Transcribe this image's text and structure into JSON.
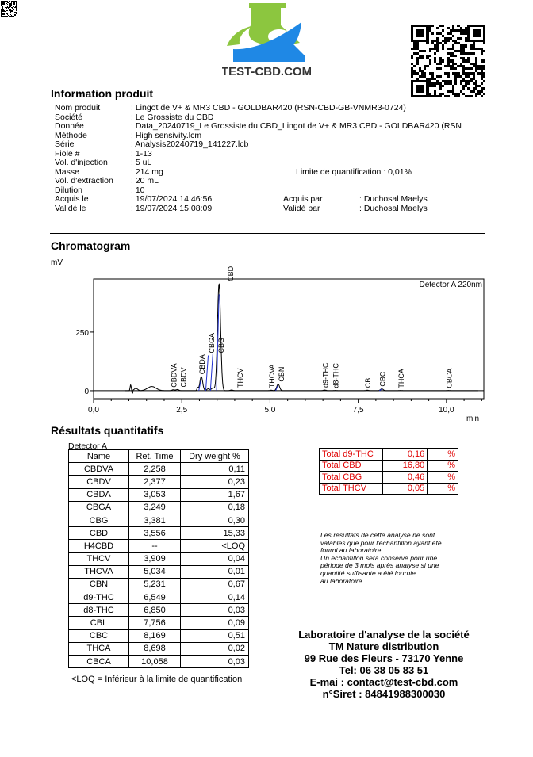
{
  "logo": {
    "text": "TEST-CBD.COM",
    "colors": {
      "green": "#8cc63f",
      "blue": "#1f88e5",
      "text": "#333333"
    }
  },
  "info": {
    "title": "Information produit",
    "rows": [
      {
        "label": "Nom produit",
        "value": ": Lingot de V+ & MR3 CBD - GOLDBAR420 (RSN-CBD-GB-VNMR3-0724)"
      },
      {
        "label": "Société",
        "value": ": Le Grossiste du CBD"
      },
      {
        "label": "Donnée",
        "value": ": Data_20240719_Le Grossiste du CBD_Lingot de V+ & MR3 CBD - GOLDBAR420 (RSN"
      },
      {
        "label": "Méthode",
        "value": ": High sensivity.lcm"
      },
      {
        "label": "Série",
        "value": ": Analysis20240719_141227.lcb"
      },
      {
        "label": "Fiole #",
        "value": ": 1-13"
      },
      {
        "label": "Vol. d'injection",
        "value": ": 5 uL"
      },
      {
        "label": "Masse",
        "value": ": 214 mg"
      },
      {
        "label": "Vol. d'extraction",
        "value": ": 20 mL"
      },
      {
        "label": "Dilution",
        "value": ": 10"
      },
      {
        "label": "Acquis le",
        "value": ": 19/07/2024 14:46:56"
      },
      {
        "label": "Validé le",
        "value": ": 19/07/2024 15:08:09"
      }
    ],
    "loq": "Limite de quantification : 0,01%",
    "acquis_par_label": "Acquis par",
    "acquis_par": ": Duchosal Maelys",
    "valide_par_label": "Validé par",
    "valide_par": ": Duchosal Maelys"
  },
  "chromatogram": {
    "title": "Chromatogram"
  },
  "chart_data": {
    "type": "line",
    "ylabel": "mV",
    "xlabel": "min",
    "legend": "Detector A 220nm",
    "xlim": [
      0,
      11.06
    ],
    "ylim": [
      -34,
      476
    ],
    "xticks": [
      "0,0",
      "2,5",
      "5,0",
      "7,5",
      "10,0"
    ],
    "xtick_values": [
      0,
      2.5,
      5,
      7.5,
      10
    ],
    "yticks": [
      "0",
      "250"
    ],
    "ytick_values": [
      0,
      250
    ],
    "peaks": [
      {
        "name": "CBDVA",
        "rt": 2.258,
        "height": 4
      },
      {
        "name": "CBDV",
        "rt": 2.377,
        "height": 5
      },
      {
        "name": "CBDA",
        "rt": 3.053,
        "height": 60
      },
      {
        "name": "CBGA",
        "rt": 3.249,
        "height": 8
      },
      {
        "name": "CBG",
        "rt": 3.381,
        "height": 12
      },
      {
        "name": "CBD",
        "rt": 3.556,
        "height": 456
      },
      {
        "name": "THCV",
        "rt": 3.909,
        "height": 3
      },
      {
        "name": "THCVA",
        "rt": 5.034,
        "height": 2
      },
      {
        "name": "CBN",
        "rt": 5.231,
        "height": 28
      },
      {
        "name": "d9-THC",
        "rt": 6.549,
        "height": 3
      },
      {
        "name": "d8-THC",
        "rt": 6.85,
        "height": 1
      },
      {
        "name": "CBL",
        "rt": 7.756,
        "height": 2
      },
      {
        "name": "CBC",
        "rt": 8.169,
        "height": 8
      },
      {
        "name": "THCA",
        "rt": 8.698,
        "height": 1
      },
      {
        "name": "CBCA",
        "rt": 10.058,
        "height": 1
      }
    ]
  },
  "results": {
    "title": "Résultats quantitatifs",
    "detector": "Detector A",
    "headers": [
      "Name",
      "Ret. Time",
      "Dry weight %"
    ],
    "rows": [
      [
        "CBDVA",
        "2,258",
        "0,11"
      ],
      [
        "CBDV",
        "2,377",
        "0,23"
      ],
      [
        "CBDA",
        "3,053",
        "1,67"
      ],
      [
        "CBGA",
        "3,249",
        "0,18"
      ],
      [
        "CBG",
        "3,381",
        "0,30"
      ],
      [
        "CBD",
        "3,556",
        "15,33"
      ],
      [
        "H4CBD",
        "--",
        "<LOQ"
      ],
      [
        "THCV",
        "3,909",
        "0,04"
      ],
      [
        "THCVA",
        "5,034",
        "0,01"
      ],
      [
        "CBN",
        "5,231",
        "0,67"
      ],
      [
        "d9-THC",
        "6,549",
        "0,14"
      ],
      [
        "d8-THC",
        "6,850",
        "0,03"
      ],
      [
        "CBL",
        "7,756",
        "0,09"
      ],
      [
        "CBC",
        "8,169",
        "0,51"
      ],
      [
        "THCA",
        "8,698",
        "0,02"
      ],
      [
        "CBCA",
        "10,058",
        "0,03"
      ]
    ],
    "footnote": "<LOQ = Inférieur à la limite de quantification"
  },
  "totals": [
    [
      "Total d9-THC",
      "0,16",
      "%"
    ],
    [
      "Total CBD",
      "16,80",
      "%"
    ],
    [
      "Total CBG",
      "0,46",
      "%"
    ],
    [
      "Total THCV",
      "0,05",
      "%"
    ]
  ],
  "disclaimer": [
    "Les résultats de cette analyse ne sont",
    "valables que pour l'échantillon ayant été",
    "fourni au laboratoire.",
    "Un échantillon sera conservé pour une",
    "période de 3 mois après analyse si une",
    "quantité suffisante a été fournie",
    "au laboratoire."
  ],
  "lab": [
    "Laboratoire d'analyse de la société",
    "TM Nature distribution",
    "99 Rue des Fleurs - 73170 Yenne",
    "Tel: 06 38 05 83 51",
    "E-mai : contact@test-cbd.com",
    "n°Siret : 84841988300030"
  ]
}
